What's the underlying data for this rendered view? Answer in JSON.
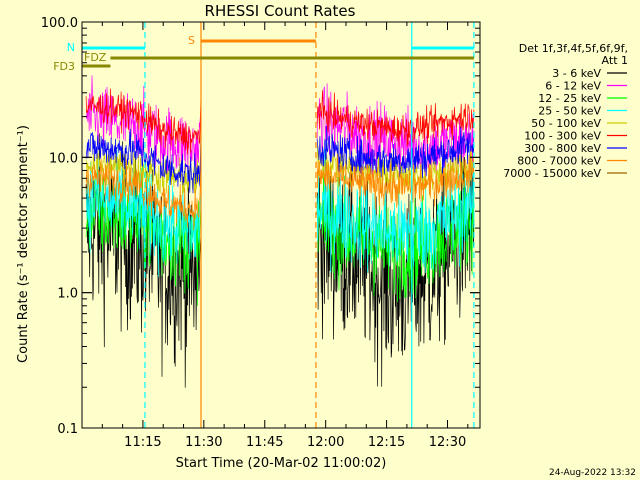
{
  "chart_data": {
    "type": "line",
    "title": "RHESSI Count Rates",
    "xlabel": "Start Time (20-Mar-02 11:00:02)",
    "ylabel": "Count Rate (s⁻¹ detector segment⁻¹)",
    "y_scale": "log",
    "ylim": [
      0.1,
      100
    ],
    "xlim_minutes": [
      0,
      98
    ],
    "x_ticks": [
      {
        "minute": 15,
        "label": "11:15"
      },
      {
        "minute": 30,
        "label": "11:30"
      },
      {
        "minute": 45,
        "label": "11:45"
      },
      {
        "minute": 60,
        "label": "12:00"
      },
      {
        "minute": 75,
        "label": "12:15"
      },
      {
        "minute": 90,
        "label": "12:30"
      }
    ],
    "y_ticks": [
      {
        "value": 0.1,
        "label": "0.1"
      },
      {
        "value": 1,
        "label": "1.0"
      },
      {
        "value": 10,
        "label": "10.0"
      },
      {
        "value": 100,
        "label": "100.0"
      }
    ],
    "legend_header": [
      "Det 1f,3f,4f,5f,6f,9f,",
      "Att 1"
    ],
    "legend_position": "right",
    "gap": [
      29.3,
      57.6
    ],
    "series": [
      {
        "name": "3 - 6 keV",
        "color": "#000000",
        "values": [
          3.0,
          2.6,
          2.2,
          1.5,
          1.3,
          2.6,
          1.7,
          1.0,
          1.3,
          3.3
        ]
      },
      {
        "name": "6 - 12 keV",
        "color": "#ff00ff",
        "values": [
          20,
          18,
          17,
          13.5,
          12,
          19,
          15,
          13,
          12,
          13
        ]
      },
      {
        "name": "12 - 25 keV",
        "color": "#00ff00",
        "values": [
          4.0,
          3.8,
          3.4,
          2.6,
          2.3,
          3.4,
          2.5,
          2.0,
          2.3,
          3.6
        ]
      },
      {
        "name": "25 - 50 keV",
        "color": "#00ffff",
        "values": [
          5.0,
          4.6,
          4.1,
          3.2,
          2.9,
          4.2,
          3.3,
          2.7,
          2.9,
          4.6
        ]
      },
      {
        "name": "50 - 100 keV",
        "color": "#cccc00",
        "values": [
          9.0,
          8.6,
          8.2,
          7.2,
          6.8,
          9.5,
          8.0,
          7.5,
          7.2,
          8.8
        ]
      },
      {
        "name": "100 - 300 keV",
        "color": "#ff0000",
        "values": [
          24,
          23,
          21,
          15.5,
          14,
          22,
          18,
          16,
          17,
          21
        ]
      },
      {
        "name": "300 - 800 keV",
        "color": "#0000ff",
        "values": [
          12,
          11.5,
          11,
          8.5,
          7.5,
          12,
          10,
          9.5,
          10,
          12.5
        ]
      },
      {
        "name": "800 - 7000 keV",
        "color": "#ff8800",
        "values": [
          7.2,
          6.8,
          6.3,
          4.6,
          4.2,
          7.4,
          6.5,
          6.0,
          6.2,
          7.8
        ]
      },
      {
        "name": "7000 - 15000 keV",
        "color": "#996600",
        "values": []
      }
    ],
    "annotations": {
      "N": {
        "label": "N",
        "color": "#00ffff"
      },
      "S": {
        "label": "S",
        "color": "#ff8800"
      },
      "FDZ": {
        "label": "FDZ",
        "color": "#888800"
      },
      "FD3": {
        "label": "FD3",
        "color": "#888800"
      }
    },
    "vertical_markers": [
      {
        "minute": 15.5,
        "color": "#00ffff",
        "style": "dashed"
      },
      {
        "minute": 29.3,
        "color": "#ff8800",
        "style": "solid"
      },
      {
        "minute": 57.6,
        "color": "#ff8800",
        "style": "dashed"
      },
      {
        "minute": 81.2,
        "color": "#00ffff",
        "style": "solid"
      },
      {
        "minute": 96.5,
        "color": "#00ffff",
        "style": "dashed"
      }
    ]
  },
  "footer": {
    "timestamp": "24-Aug-2022 13:32"
  }
}
